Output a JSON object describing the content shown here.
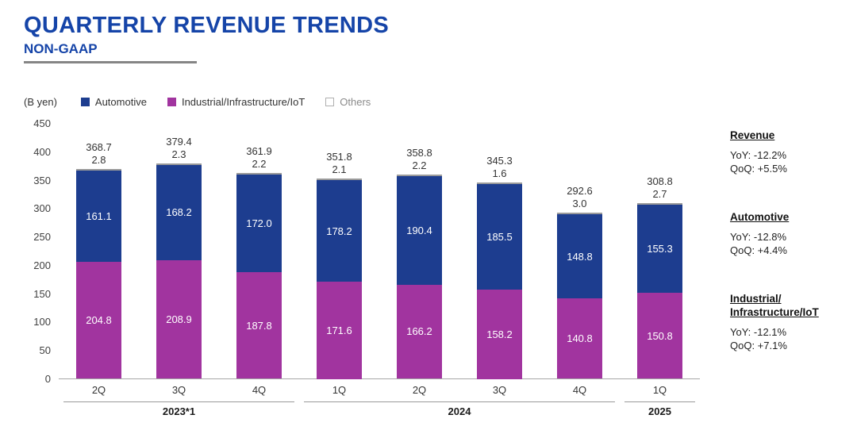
{
  "header": {
    "title": "QUARTERLY REVENUE TRENDS",
    "subtitle": "NON-GAAP"
  },
  "colors": {
    "title": "#1544a8",
    "automotive": "#1d3d8f",
    "industrial": "#a1349f",
    "others": "#ffffff"
  },
  "chart_data": {
    "type": "bar",
    "stacked": true,
    "unit_label": "(B yen)",
    "ylim": [
      0,
      450
    ],
    "yticks": [
      0,
      50,
      100,
      150,
      200,
      250,
      300,
      350,
      400,
      450
    ],
    "grid": false,
    "legend_position": "top",
    "legend": [
      {
        "label": "Automotive",
        "color": "#1d3d8f"
      },
      {
        "label": "Industrial/Infrastructure/IoT",
        "color": "#a1349f"
      },
      {
        "label": "Others",
        "color": "#ffffff"
      }
    ],
    "categories": [
      "2Q",
      "3Q",
      "4Q",
      "1Q",
      "2Q",
      "3Q",
      "4Q",
      "1Q"
    ],
    "groups": [
      {
        "label": "2023*1",
        "span": 3
      },
      {
        "label": "2024",
        "span": 4
      },
      {
        "label": "2025",
        "span": 1
      }
    ],
    "series": [
      {
        "name": "Industrial/Infrastructure/IoT",
        "values": [
          204.8,
          208.9,
          187.8,
          171.6,
          166.2,
          158.2,
          140.8,
          150.8
        ]
      },
      {
        "name": "Automotive",
        "values": [
          161.1,
          168.2,
          172.0,
          178.2,
          190.4,
          185.5,
          148.8,
          155.3
        ]
      },
      {
        "name": "Others",
        "values": [
          2.8,
          2.3,
          2.2,
          2.1,
          2.2,
          1.6,
          3.0,
          2.7
        ]
      }
    ],
    "totals": [
      368.7,
      379.4,
      361.9,
      351.8,
      358.8,
      345.3,
      292.6,
      308.8
    ]
  },
  "annotations": [
    {
      "heading_lines": [
        "Revenue"
      ],
      "lines": [
        "YoY: -12.2%",
        "QoQ: +5.5%"
      ]
    },
    {
      "heading_lines": [
        "Automotive"
      ],
      "lines": [
        "YoY: -12.8%",
        "QoQ: +4.4%"
      ]
    },
    {
      "heading_lines": [
        "Industrial/",
        "Infrastructure/IoT"
      ],
      "lines": [
        "YoY: -12.1%",
        "QoQ: +7.1%"
      ]
    }
  ]
}
